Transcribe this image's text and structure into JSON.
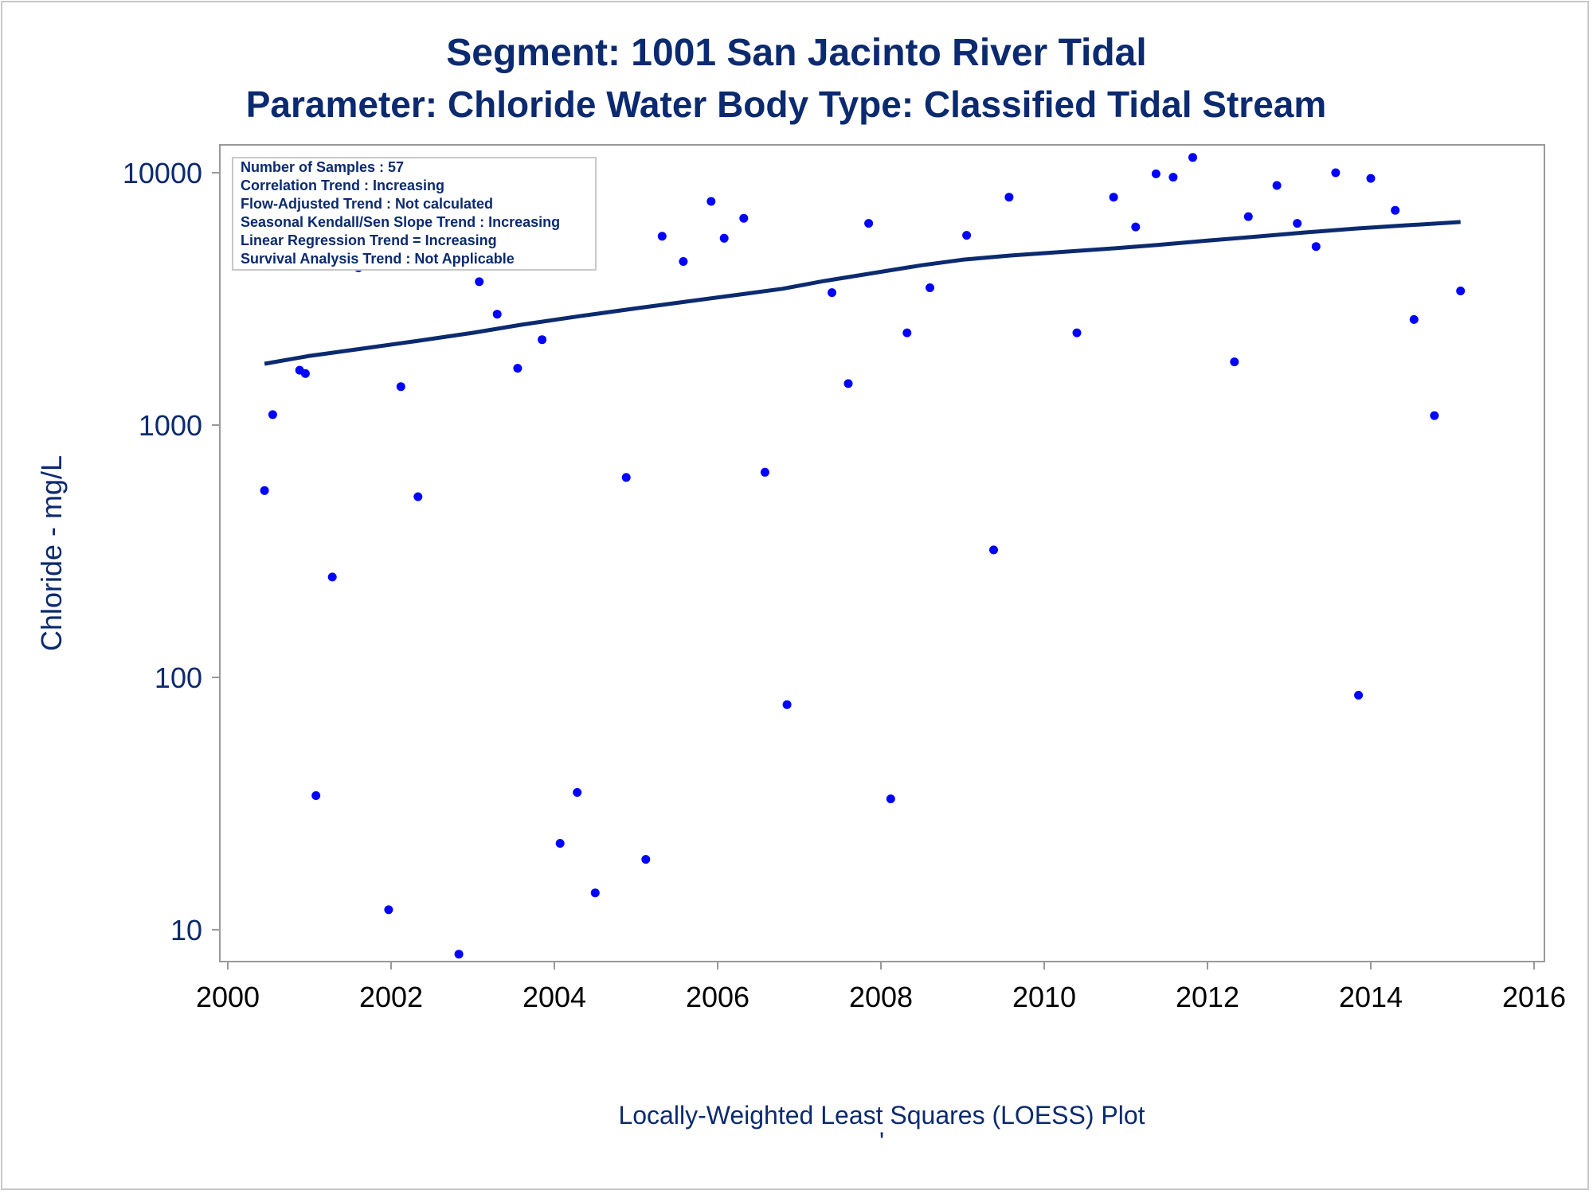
{
  "page": {
    "title_line1": "Segment: 1001  San Jacinto River Tidal",
    "title_line2": "Parameter: Chloride   Water Body Type: Classified Tidal Stream",
    "footnote": "Locally-Weighted Least Squares (LOESS) Plot",
    "footnote_mark": "'"
  },
  "inset": {
    "lines": [
      "Number of Samples : 57",
      "Correlation Trend : Increasing",
      "Flow-Adjusted Trend : Not calculated",
      "Seasonal Kendall/Sen Slope Trend : Increasing",
      "Linear Regression Trend = Increasing",
      "Survival Analysis Trend : Not Applicable"
    ]
  },
  "colors": {
    "points": "#0000ff",
    "trend_line": "#0b2a6f",
    "text": "#0b2a6f",
    "frame": "#999999"
  },
  "chart_data": {
    "type": "scatter",
    "xlabel": "",
    "ylabel": "Chloride - mg/L",
    "xlim": [
      2000,
      2016
    ],
    "ylim": [
      7.5,
      14500
    ],
    "y_scale": "log",
    "x_ticks": [
      "2000",
      "2002",
      "2004",
      "2006",
      "2008",
      "2010",
      "2012",
      "2014",
      "2016"
    ],
    "y_ticks": [
      "10",
      "100",
      "1000",
      "10000"
    ],
    "grid": false,
    "legend": "none",
    "series": [
      {
        "type": "scatter",
        "x": [
          2000.45,
          2000.55,
          2000.65,
          2000.73,
          2000.78,
          2000.88,
          2000.95,
          2001.08,
          2001.28,
          2001.6,
          2001.97,
          2002.12,
          2002.33,
          2002.83,
          2003.08,
          2003.3,
          2003.55,
          2003.85,
          2004.07,
          2004.28,
          2004.5,
          2004.88,
          2005.12,
          2005.32,
          2005.58,
          2005.92,
          2006.08,
          2006.32,
          2006.58,
          2006.85,
          2007.4,
          2007.6,
          2007.85,
          2008.12,
          2008.32,
          2008.6,
          2009.05,
          2009.38,
          2009.57,
          2010.4,
          2010.85,
          2011.12,
          2011.37,
          2011.58,
          2011.82,
          2012.33,
          2012.5,
          2012.85,
          2013.1,
          2013.33,
          2013.57,
          2013.85,
          2014.0,
          2014.3,
          2014.53,
          2014.78,
          2015.1
        ],
        "y": [
          550,
          1100,
          4800,
          7000,
          6600,
          1650,
          1600,
          34,
          250,
          4200,
          12,
          1420,
          520,
          8,
          3700,
          2750,
          1680,
          2180,
          22,
          35,
          14,
          620,
          19,
          5600,
          4450,
          7700,
          5500,
          6600,
          650,
          78,
          3350,
          1460,
          6300,
          33,
          2320,
          3500,
          5650,
          320,
          8000,
          2320,
          8000,
          6100,
          9900,
          9600,
          11500,
          1780,
          6700,
          8900,
          6300,
          5100,
          10000,
          85,
          9500,
          7100,
          2620,
          1090,
          3400
        ]
      },
      {
        "type": "line",
        "name": "",
        "x": [
          2000.45,
          2001.0,
          2001.6,
          2002.3,
          2003.0,
          2003.6,
          2004.3,
          2005.0,
          2005.6,
          2006.3,
          2006.8,
          2007.3,
          2007.9,
          2008.5,
          2009.0,
          2009.6,
          2010.2,
          2010.8,
          2011.4,
          2012.0,
          2012.6,
          2013.2,
          2013.8,
          2014.4,
          2015.1
        ],
        "y": [
          1750,
          1880,
          2000,
          2150,
          2320,
          2500,
          2700,
          2900,
          3080,
          3300,
          3470,
          3720,
          4000,
          4300,
          4520,
          4700,
          4850,
          5000,
          5180,
          5380,
          5580,
          5800,
          6000,
          6180,
          6380
        ]
      }
    ]
  }
}
